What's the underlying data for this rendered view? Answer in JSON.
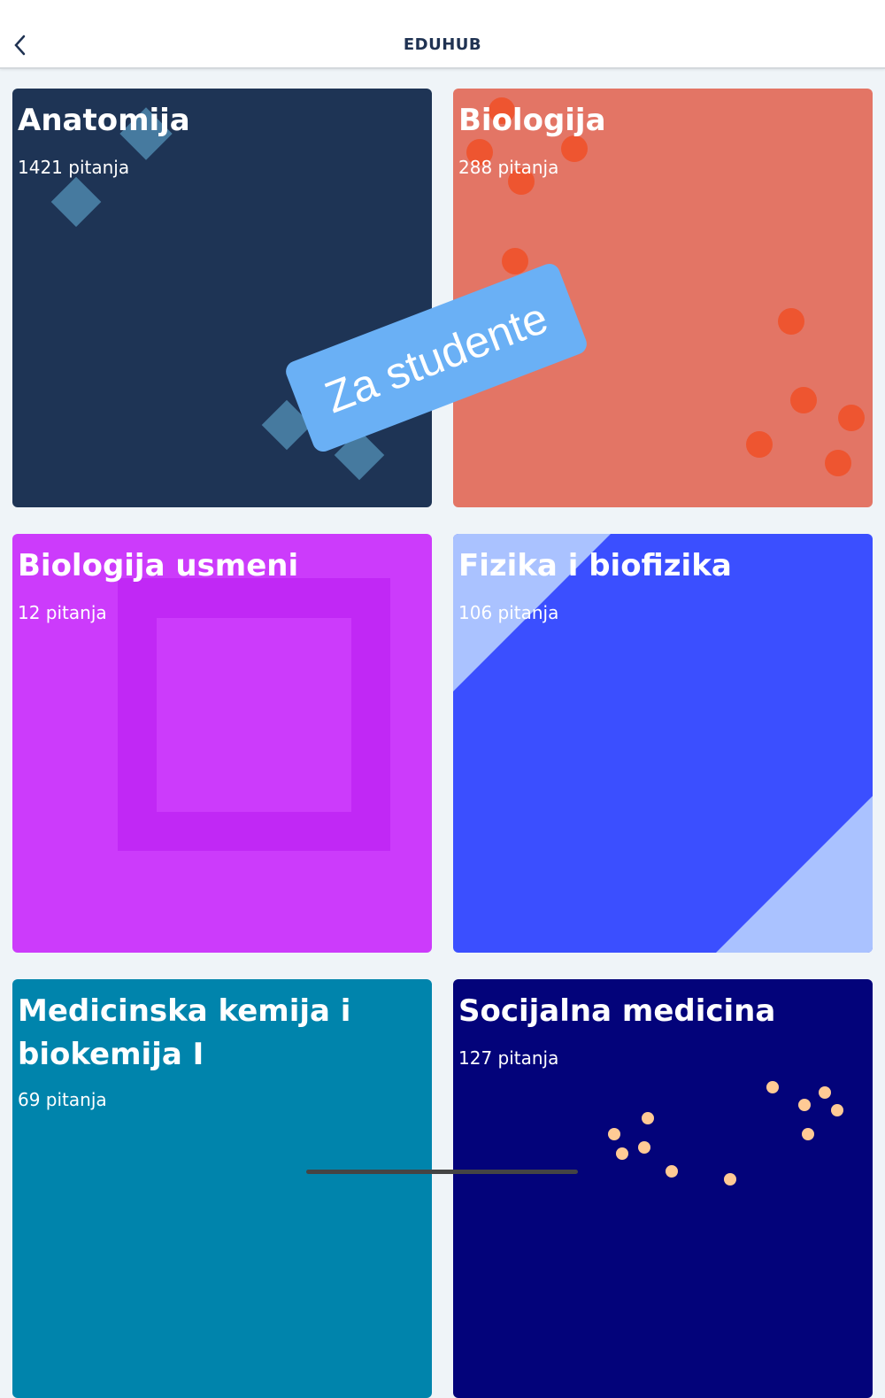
{
  "header": {
    "title": "EDUHUB",
    "back_icon": "chevron-left-icon"
  },
  "cards": [
    {
      "title": "Anatomija",
      "count": "1421 pitanja",
      "color": "#1e3455"
    },
    {
      "title": "Biologija",
      "count": "288 pitanja",
      "color": "#e37565"
    },
    {
      "title": "Biologija usmeni",
      "count": "12 pitanja",
      "color": "#cc3bfb"
    },
    {
      "title": "Fizika i biofizika",
      "count": "106 pitanja",
      "color": "#3b4fff"
    },
    {
      "title": "Medicinska kemija i biokemija I",
      "count": "69 pitanja",
      "color": "#0084ac"
    },
    {
      "title": "Socijalna medicina",
      "count": "127 pitanja",
      "color": "#03037a"
    }
  ],
  "banner": {
    "label": "Za studente",
    "color": "#6ab0f5"
  }
}
